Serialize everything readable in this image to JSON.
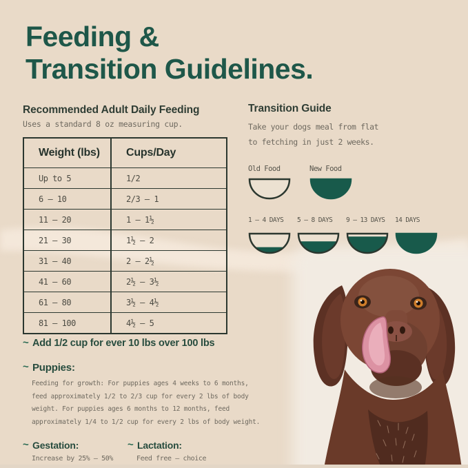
{
  "page": {
    "title_line1": "Feeding &",
    "title_line2": "Transition Guidelines."
  },
  "feeding": {
    "heading": "Recommended Adult Daily Feeding",
    "subheading": "Uses a standard 8 oz measuring cup.",
    "table": {
      "headers": [
        "Weight (lbs)",
        "Cups/Day"
      ],
      "rows": [
        [
          "Up to 5",
          "1/2"
        ],
        [
          "6 – 10",
          "2/3 – 1"
        ],
        [
          "11 – 20",
          "1 – 1½"
        ],
        [
          "21 – 30",
          "1½ – 2"
        ],
        [
          "31 – 40",
          "2 – 2½"
        ],
        [
          "41 – 60",
          "2½ – 3½"
        ],
        [
          "61 – 80",
          "3½ – 4½"
        ],
        [
          "81 – 100",
          "4½ – 5"
        ]
      ]
    }
  },
  "notes": {
    "bullet_glyph": "~",
    "add_line": "Add 1/2 cup for ever 10 lbs over 100 lbs",
    "puppies_label": "Puppies:",
    "puppies_text": "Feeding for growth: For puppies ages 4 weeks to 6 months, feed approximately 1/2 to 2/3 cup for every 2 lbs of body weight. For puppies ages 6 months to 12 months, feed approximately 1/4 to 1/2 cup for every 2 lbs of body weight.",
    "gestation_label": "Gestation:",
    "gestation_text": "Increase by 25% – 50%",
    "lactation_label": "Lactation:",
    "lactation_text": "Feed free – choice"
  },
  "transition": {
    "heading": "Transition Guide",
    "sub_line1": "Take your dogs meal from flat",
    "sub_line2": "to fetching in just 2 weeks.",
    "legend": [
      {
        "label": "Old Food",
        "fill": 0
      },
      {
        "label": "New Food",
        "fill": 1
      }
    ],
    "stages": [
      {
        "label": "1 – 4 DAYS",
        "fill": 0.3
      },
      {
        "label": "5 – 8 DAYS",
        "fill": 0.6
      },
      {
        "label": "9 – 13 DAYS",
        "fill": 0.85
      },
      {
        "label": "14 DAYS",
        "fill": 1
      }
    ]
  },
  "colors": {
    "background": "#e9dac8",
    "title_green": "#1e5749",
    "bowl_green": "#185a4b",
    "bowl_outline": "#2b372f",
    "bowl_empty": "#ece1d1",
    "photo_background": "#f2ebe2"
  }
}
